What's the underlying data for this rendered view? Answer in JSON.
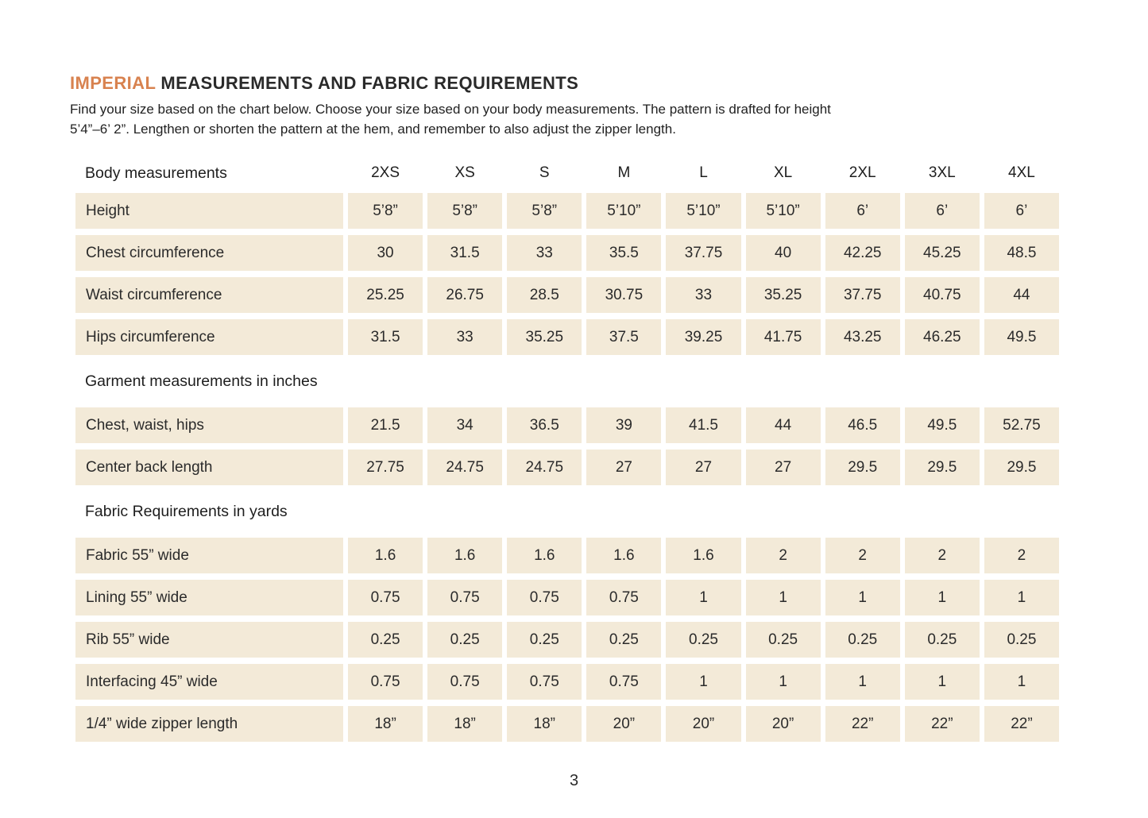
{
  "title": {
    "highlight": "IMPERIAL",
    "rest": " MEASUREMENTS AND FABRIC REQUIREMENTS"
  },
  "intro": {
    "line1": "Find your size based on the chart below. Choose your size based on your body measurements. The pattern is drafted for height",
    "line2": "5’4”–6’ 2”. Lengthen or shorten the pattern at the hem, and remember to also adjust the zipper length."
  },
  "table": {
    "header": {
      "label": "Body measurements",
      "sizes": [
        "2XS",
        "XS",
        "S",
        "M",
        "L",
        "XL",
        "2XL",
        "3XL",
        "4XL"
      ]
    },
    "sections": [
      {
        "header": "",
        "rows": [
          {
            "label": "Height",
            "values": [
              "5’8”",
              "5’8”",
              "5’8”",
              "5’10”",
              "5’10”",
              "5’10”",
              "6’",
              "6’",
              "6’"
            ]
          },
          {
            "label": "Chest circumference",
            "values": [
              "30",
              "31.5",
              "33",
              "35.5",
              "37.75",
              "40",
              "42.25",
              "45.25",
              "48.5"
            ]
          },
          {
            "label": "Waist circumference",
            "values": [
              "25.25",
              "26.75",
              "28.5",
              "30.75",
              "33",
              "35.25",
              "37.75",
              "40.75",
              "44"
            ]
          },
          {
            "label": "Hips circumference",
            "values": [
              "31.5",
              "33",
              "35.25",
              "37.5",
              "39.25",
              "41.75",
              "43.25",
              "46.25",
              "49.5"
            ]
          }
        ]
      },
      {
        "header": "Garment measurements in inches",
        "rows": [
          {
            "label": "Chest, waist, hips",
            "values": [
              "21.5",
              "34",
              "36.5",
              "39",
              "41.5",
              "44",
              "46.5",
              "49.5",
              "52.75"
            ]
          },
          {
            "label": "Center back length",
            "values": [
              "27.75",
              "24.75",
              "24.75",
              "27",
              "27",
              "27",
              "29.5",
              "29.5",
              "29.5"
            ]
          }
        ]
      },
      {
        "header": "Fabric Requirements in yards",
        "rows": [
          {
            "label": "Fabric 55” wide",
            "values": [
              "1.6",
              "1.6",
              "1.6",
              "1.6",
              "1.6",
              "2",
              "2",
              "2",
              "2"
            ]
          },
          {
            "label": "Lining 55” wide",
            "values": [
              "0.75",
              "0.75",
              "0.75",
              "0.75",
              "1",
              "1",
              "1",
              "1",
              "1"
            ]
          },
          {
            "label": "Rib 55” wide",
            "values": [
              "0.25",
              "0.25",
              "0.25",
              "0.25",
              "0.25",
              "0.25",
              "0.25",
              "0.25",
              "0.25"
            ]
          },
          {
            "label": "Interfacing 45” wide",
            "values": [
              "0.75",
              "0.75",
              "0.75",
              "0.75",
              "1",
              "1",
              "1",
              "1",
              "1"
            ]
          },
          {
            "label": "1/4” wide zipper length",
            "values": [
              "18”",
              "18”",
              "18”",
              "20”",
              "20”",
              "20”",
              "22”",
              "22”",
              "22”"
            ]
          }
        ]
      }
    ]
  },
  "page_number": "3",
  "colors": {
    "accent": "#d8824f",
    "cell_bg": "#f3ead8",
    "text": "#222222"
  }
}
